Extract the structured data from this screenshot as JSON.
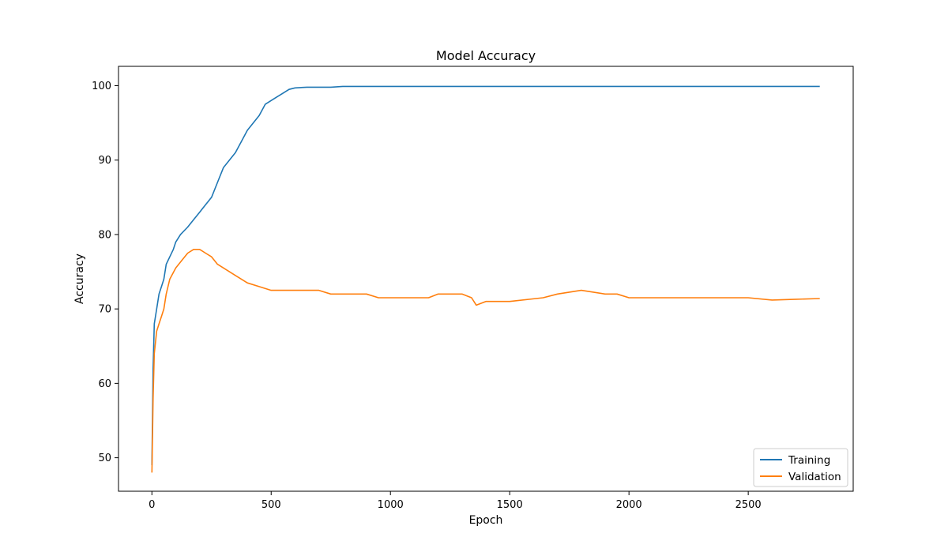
{
  "chart_data": {
    "type": "line",
    "title": "Model Accuracy",
    "xlabel": "Epoch",
    "ylabel": "Accuracy",
    "xlim": [
      -140,
      2940
    ],
    "ylim": [
      45.5,
      102.6
    ],
    "x_ticks": [
      0,
      500,
      1000,
      1500,
      2000,
      2500
    ],
    "y_ticks": [
      50,
      60,
      70,
      80,
      90,
      100
    ],
    "grid": false,
    "legend_position": "lower-right",
    "series": [
      {
        "name": "Training",
        "color": "#1f77b4",
        "x": [
          0,
          5,
          10,
          20,
          30,
          40,
          50,
          60,
          75,
          90,
          100,
          120,
          150,
          175,
          200,
          225,
          250,
          275,
          300,
          325,
          350,
          375,
          400,
          425,
          450,
          475,
          500,
          525,
          550,
          575,
          600,
          650,
          700,
          750,
          800,
          850,
          900,
          1000,
          1100,
          1160,
          1200,
          1300,
          1350,
          1400,
          1500,
          1640,
          1700,
          1800,
          2000,
          2200,
          2360,
          2500,
          2600,
          2700,
          2800
        ],
        "y": [
          49,
          62,
          68,
          70,
          72,
          73,
          74,
          76,
          77,
          78,
          79,
          80,
          81,
          82,
          83,
          84,
          85,
          87,
          89,
          90,
          91,
          92.5,
          94,
          95,
          96,
          97.5,
          98,
          98.5,
          99,
          99.5,
          99.7,
          99.8,
          99.8,
          99.8,
          99.9,
          99.9,
          99.9,
          99.9,
          99.9,
          99.9,
          99.9,
          99.9,
          99.9,
          99.9,
          99.9,
          99.9,
          99.9,
          99.9,
          99.9,
          99.9,
          99.9,
          99.9,
          99.9,
          99.9,
          99.9
        ]
      },
      {
        "name": "Validation",
        "color": "#ff7f0e",
        "x": [
          0,
          5,
          10,
          20,
          30,
          40,
          50,
          60,
          75,
          100,
          125,
          150,
          175,
          200,
          225,
          250,
          275,
          300,
          350,
          400,
          450,
          500,
          550,
          600,
          650,
          700,
          750,
          800,
          850,
          900,
          950,
          1000,
          1100,
          1160,
          1200,
          1300,
          1340,
          1360,
          1400,
          1500,
          1640,
          1700,
          1800,
          1900,
          1950,
          2000,
          2100,
          2200,
          2300,
          2360,
          2400,
          2500,
          2600,
          2700,
          2800
        ],
        "y": [
          48,
          58,
          64,
          67,
          68,
          69,
          70,
          72,
          74,
          75.5,
          76.5,
          77.5,
          78,
          78,
          77.5,
          77,
          76,
          75.5,
          74.5,
          73.5,
          73,
          72.5,
          72.5,
          72.5,
          72.5,
          72.5,
          72,
          72,
          72,
          72,
          71.5,
          71.5,
          71.5,
          71.5,
          72,
          72,
          71.5,
          70.5,
          71,
          71,
          71.5,
          72,
          72.5,
          72,
          72,
          71.5,
          71.5,
          71.5,
          71.5,
          71.5,
          71.5,
          71.5,
          71.2,
          71.3,
          71.4
        ]
      }
    ]
  }
}
